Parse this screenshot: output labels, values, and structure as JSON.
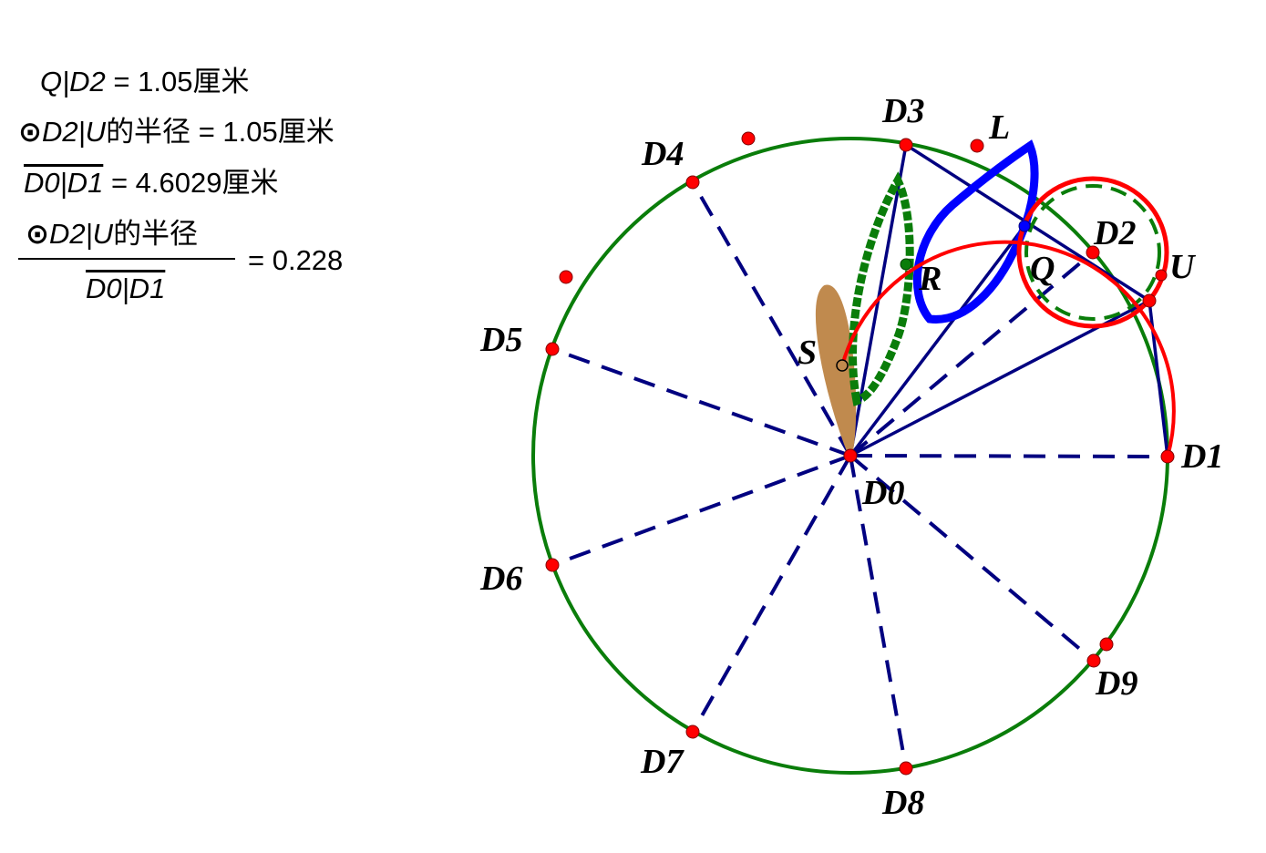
{
  "measurements": {
    "m1": {
      "name": "Q|D2",
      "value": "= 1.05厘米"
    },
    "m2": {
      "prefix": "⊙",
      "name": "D2|U",
      "suffix": "的半径",
      "value": "= 1.05厘米"
    },
    "m3": {
      "name": "D0|D1",
      "value": "= 4.6029厘米"
    },
    "m4": {
      "numerator_prefix": "⊙",
      "numerator_name": "D2|U",
      "numerator_suffix": "的半径",
      "denominator": "D0|D1",
      "value": "= 0.228"
    }
  },
  "labels": {
    "D0": "D0",
    "D1": "D1",
    "D2": "D2",
    "D3": "D3",
    "D4": "D4",
    "D5": "D5",
    "D6": "D6",
    "D7": "D7",
    "D8": "D8",
    "D9": "D9",
    "L": "L",
    "Q": "Q",
    "R": "R",
    "S": "S",
    "U": "U"
  },
  "colors": {
    "main_circle": "#0a7d0a",
    "red_circle": "#ff0000",
    "spoke": "#000080",
    "blue_trace": "#0000ff",
    "green_trace": "#0a7d0a",
    "brown_trace": "#c08a4e",
    "point": "#ff0000"
  }
}
